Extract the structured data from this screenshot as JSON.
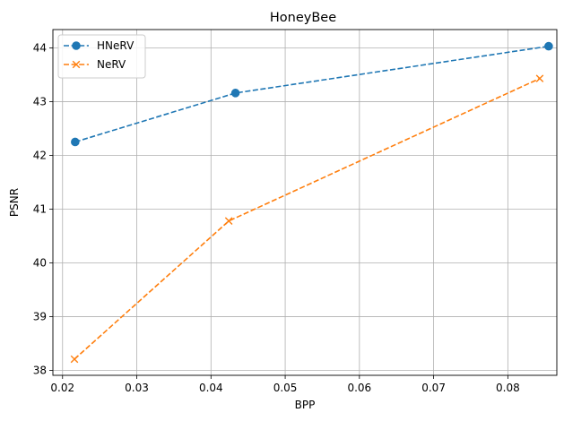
{
  "chart_data": {
    "type": "line",
    "title": "HoneyBee",
    "xlabel": "BPP",
    "ylabel": "PSNR",
    "xlim": [
      0.0187,
      0.0866
    ],
    "ylim": [
      37.91,
      44.34
    ],
    "xticks": [
      0.02,
      0.03,
      0.04,
      0.05,
      0.06,
      0.07,
      0.08
    ],
    "yticks": [
      38,
      39,
      40,
      41,
      42,
      43,
      44
    ],
    "xtick_labels": [
      "0.02",
      "0.03",
      "0.04",
      "0.05",
      "0.06",
      "0.07",
      "0.08"
    ],
    "ytick_labels": [
      "38",
      "39",
      "40",
      "41",
      "42",
      "43",
      "44"
    ],
    "grid": true,
    "legend_position": "top-left",
    "series": [
      {
        "name": "HNeRV",
        "color": "#1f77b4",
        "marker": "circle",
        "linestyle": "dashed",
        "x": [
          0.0217,
          0.0433,
          0.0855
        ],
        "y": [
          42.25,
          43.16,
          44.03
        ]
      },
      {
        "name": "NeRV",
        "color": "#ff7f0e",
        "marker": "x",
        "linestyle": "dashed",
        "x": [
          0.0216,
          0.0424,
          0.0843
        ],
        "y": [
          38.21,
          40.78,
          43.43
        ]
      }
    ]
  }
}
